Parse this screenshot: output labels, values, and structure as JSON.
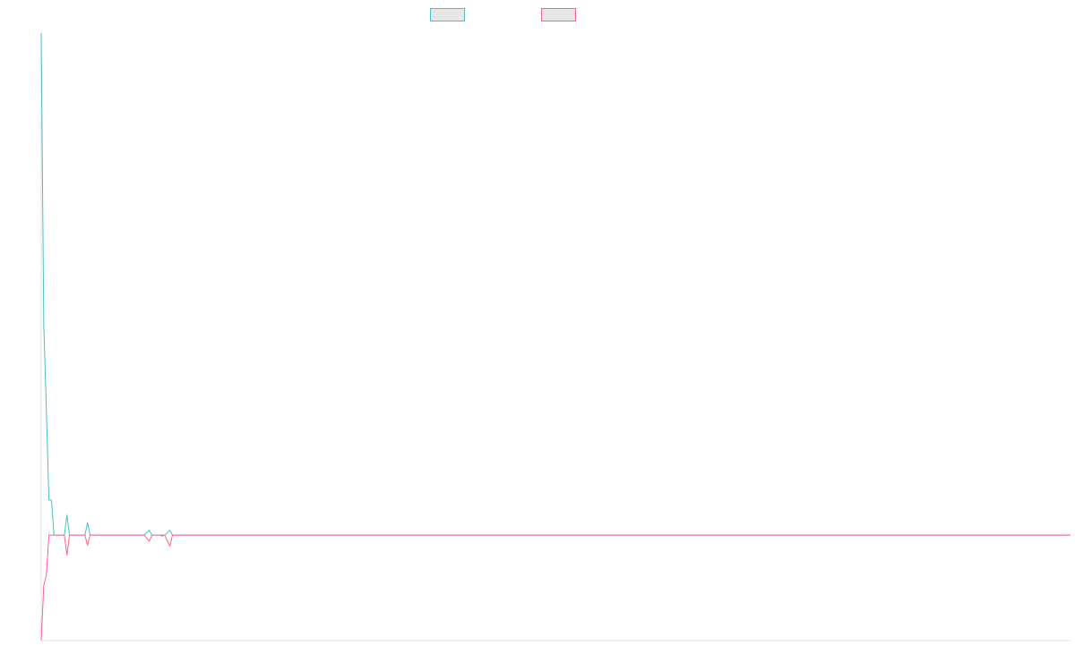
{
  "chart_data": {
    "type": "line",
    "title": "",
    "xlabel": "",
    "ylabel": "",
    "grid": false,
    "legend": "top-center",
    "series": [
      {
        "name": "",
        "color": "#4bc0c0",
        "points": [
          [
            0,
            1.0
          ],
          [
            1,
            0.42
          ],
          [
            2,
            0.25
          ],
          [
            3,
            0.07
          ],
          [
            4,
            0.07
          ],
          [
            5,
            0.0
          ],
          [
            6,
            0.0
          ],
          [
            7,
            0.0
          ],
          [
            8,
            0.0
          ],
          [
            9,
            0.0
          ],
          [
            10,
            0.04
          ],
          [
            11,
            0.0
          ],
          [
            12,
            0.0
          ],
          [
            13,
            0.0
          ],
          [
            14,
            0.0
          ],
          [
            15,
            0.0
          ],
          [
            16,
            0.0
          ],
          [
            17,
            0.0
          ],
          [
            18,
            0.025
          ],
          [
            19,
            0.0
          ],
          [
            20,
            0.0
          ],
          [
            25,
            0.0
          ],
          [
            30,
            0.0
          ],
          [
            40,
            0.0
          ],
          [
            42,
            0.01
          ],
          [
            43,
            0.0
          ],
          [
            46,
            0.0
          ],
          [
            47,
            -0.002
          ],
          [
            48,
            0.0
          ],
          [
            50,
            0.01
          ],
          [
            51,
            0.0
          ],
          [
            100,
            0.0
          ],
          [
            200,
            0.0
          ],
          [
            300,
            0.0
          ],
          [
            400,
            0.0
          ]
        ]
      },
      {
        "name": "",
        "color": "#ff6384",
        "points": [
          [
            0,
            -0.21
          ],
          [
            1,
            -0.1
          ],
          [
            2,
            -0.08
          ],
          [
            3,
            0.0
          ],
          [
            4,
            0.0
          ],
          [
            5,
            0.0
          ],
          [
            6,
            0.0
          ],
          [
            7,
            0.0
          ],
          [
            8,
            0.0
          ],
          [
            9,
            0.0
          ],
          [
            10,
            -0.04
          ],
          [
            11,
            0.0
          ],
          [
            12,
            0.0
          ],
          [
            13,
            0.0
          ],
          [
            14,
            0.0
          ],
          [
            15,
            0.0
          ],
          [
            16,
            0.0
          ],
          [
            17,
            0.0
          ],
          [
            18,
            -0.02
          ],
          [
            19,
            0.0
          ],
          [
            20,
            0.0
          ],
          [
            25,
            0.0
          ],
          [
            30,
            0.0
          ],
          [
            40,
            0.0
          ],
          [
            42,
            -0.012
          ],
          [
            43,
            0.0
          ],
          [
            46,
            0.0
          ],
          [
            47,
            0.0
          ],
          [
            48,
            0.0
          ],
          [
            50,
            -0.022
          ],
          [
            51,
            0.0
          ],
          [
            100,
            0.0
          ],
          [
            200,
            0.0
          ],
          [
            300,
            0.0
          ],
          [
            400,
            0.0
          ]
        ]
      }
    ],
    "xlim": [
      0,
      400
    ],
    "ylim": [
      -0.21,
      1.0
    ]
  }
}
